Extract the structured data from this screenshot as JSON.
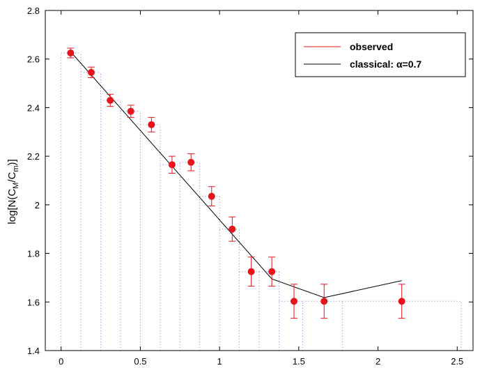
{
  "chart_data": {
    "type": "scatter",
    "ylabel": "log[N(C_M/C_m)]",
    "ylabel_parts": {
      "main": "log[N(C",
      "sub1": "M",
      "mid": "/C",
      "sub2": "m",
      "end": ")]"
    },
    "xlim": [
      -0.1,
      2.6
    ],
    "ylim": [
      1.4,
      2.8
    ],
    "xticks": [
      0,
      0.5,
      1,
      1.5,
      2,
      2.5
    ],
    "xtick_labels": [
      "0",
      "0.5",
      "1",
      "1.5",
      "2",
      "2.5"
    ],
    "yticks": [
      1.4,
      1.6,
      1.8,
      2.0,
      2.2,
      2.4,
      2.6,
      2.8
    ],
    "ytick_labels": [
      "1.4",
      "1.6",
      "1.8",
      "2",
      "2.2",
      "2.4",
      "2.6",
      "2.8"
    ],
    "grid": false,
    "legend_position": "top-right",
    "colors": {
      "observed": "#e8141c",
      "classical": "#000000",
      "histogram": "#7f86d8"
    },
    "series": [
      {
        "name": "observed",
        "style": "errorbar",
        "x": [
          0.06,
          0.19,
          0.31,
          0.44,
          0.57,
          0.7,
          0.82,
          0.95,
          1.08,
          1.2,
          1.33,
          1.47,
          1.66,
          2.15
        ],
        "y": [
          2.625,
          2.545,
          2.43,
          2.385,
          2.33,
          2.165,
          2.175,
          2.035,
          1.9,
          1.725,
          1.725,
          1.603,
          1.603,
          1.603
        ],
        "yerr_low": [
          0.02,
          0.022,
          0.025,
          0.025,
          0.03,
          0.035,
          0.035,
          0.04,
          0.05,
          0.06,
          0.06,
          0.07,
          0.07,
          0.07
        ],
        "yerr_high": [
          0.02,
          0.022,
          0.025,
          0.025,
          0.03,
          0.035,
          0.035,
          0.04,
          0.05,
          0.06,
          0.06,
          0.07,
          0.07,
          0.07
        ]
      },
      {
        "name": "classical: α=0.7",
        "style": "line",
        "x": [
          0.06,
          1.33,
          1.66,
          2.15
        ],
        "y": [
          2.63,
          1.695,
          1.618,
          1.688
        ]
      }
    ],
    "histogram": {
      "style": "dotted-steps",
      "edges": [
        0.0,
        0.125,
        0.25,
        0.375,
        0.5,
        0.625,
        0.75,
        0.875,
        1.0,
        1.125,
        1.25,
        1.375,
        1.525,
        1.775,
        2.525
      ],
      "heights": [
        2.625,
        2.545,
        2.43,
        2.385,
        2.33,
        2.165,
        2.175,
        2.035,
        1.9,
        1.725,
        1.725,
        1.603,
        1.603,
        1.603
      ]
    },
    "legend": [
      {
        "label": "observed",
        "series": "observed"
      },
      {
        "label": "classical: α=0.7",
        "series": "classical"
      }
    ]
  }
}
